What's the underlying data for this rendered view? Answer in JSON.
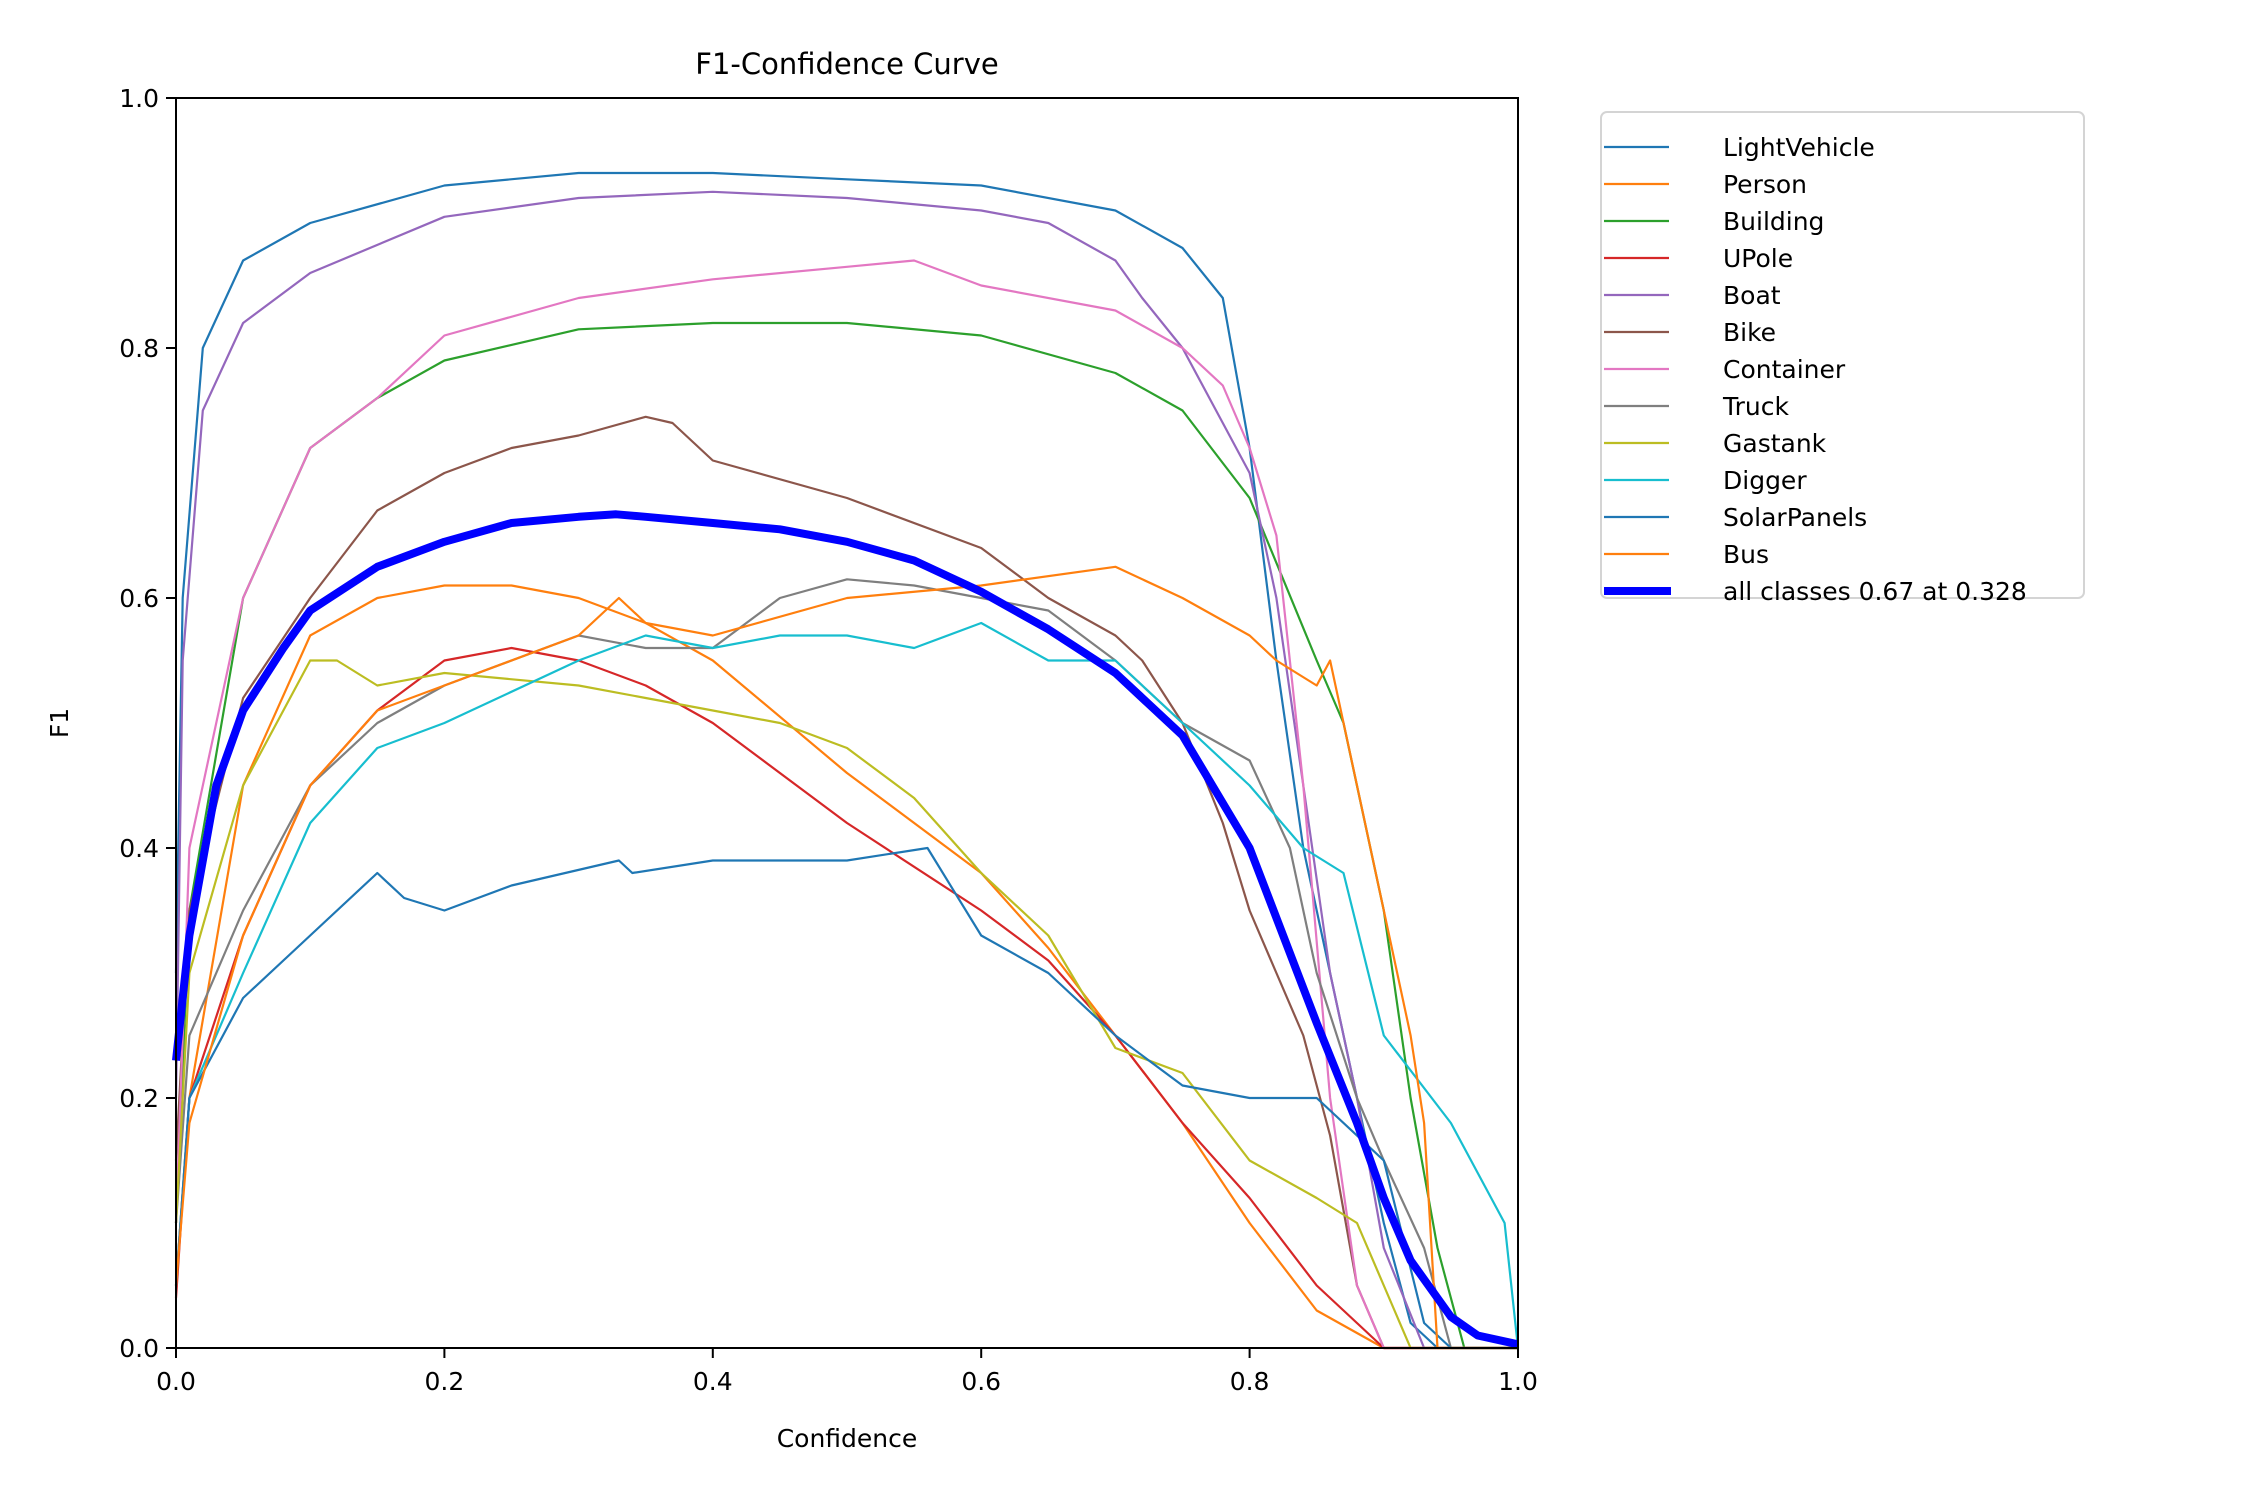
{
  "chart_data": {
    "type": "line",
    "title": "F1-Confidence Curve",
    "xlabel": "Confidence",
    "ylabel": "F1",
    "xlim": [
      0,
      1
    ],
    "ylim": [
      0,
      1
    ],
    "xticks": [
      "0.0",
      "0.2",
      "0.4",
      "0.6",
      "0.8",
      "1.0"
    ],
    "yticks": [
      "0.0",
      "0.2",
      "0.4",
      "0.6",
      "0.8",
      "1.0"
    ],
    "grid": false,
    "legend_position": "outside-top-right",
    "series": [
      {
        "name": "LightVehicle",
        "color": "#1f77b4",
        "x": [
          0,
          0.005,
          0.02,
          0.05,
          0.1,
          0.2,
          0.3,
          0.4,
          0.5,
          0.6,
          0.7,
          0.75,
          0.78,
          0.8,
          0.82,
          0.84,
          0.86,
          0.88,
          0.9,
          0.92,
          0.94,
          1.0
        ],
        "y": [
          0.3,
          0.6,
          0.8,
          0.87,
          0.9,
          0.93,
          0.94,
          0.94,
          0.935,
          0.93,
          0.91,
          0.88,
          0.84,
          0.72,
          0.55,
          0.4,
          0.3,
          0.2,
          0.1,
          0.02,
          0,
          0
        ]
      },
      {
        "name": "Person",
        "color": "#ff7f0e",
        "x": [
          0,
          0.01,
          0.05,
          0.1,
          0.15,
          0.2,
          0.25,
          0.3,
          0.35,
          0.4,
          0.5,
          0.6,
          0.65,
          0.7,
          0.75,
          0.8,
          0.85,
          0.9,
          0.95,
          1.0
        ],
        "y": [
          0.05,
          0.2,
          0.45,
          0.57,
          0.6,
          0.61,
          0.61,
          0.6,
          0.58,
          0.55,
          0.46,
          0.38,
          0.32,
          0.25,
          0.18,
          0.1,
          0.03,
          0,
          0,
          0
        ]
      },
      {
        "name": "Building",
        "color": "#2ca02c",
        "x": [
          0,
          0.01,
          0.05,
          0.1,
          0.15,
          0.2,
          0.3,
          0.4,
          0.5,
          0.6,
          0.7,
          0.75,
          0.8,
          0.85,
          0.87,
          0.9,
          0.92,
          0.94,
          0.96,
          1.0
        ],
        "y": [
          0.1,
          0.35,
          0.6,
          0.72,
          0.76,
          0.79,
          0.815,
          0.82,
          0.82,
          0.81,
          0.78,
          0.75,
          0.68,
          0.55,
          0.5,
          0.35,
          0.2,
          0.08,
          0,
          0
        ]
      },
      {
        "name": "UPole",
        "color": "#d62728",
        "x": [
          0,
          0.01,
          0.05,
          0.1,
          0.15,
          0.2,
          0.25,
          0.3,
          0.35,
          0.4,
          0.5,
          0.6,
          0.65,
          0.7,
          0.75,
          0.8,
          0.85,
          0.9,
          0.95,
          1.0
        ],
        "y": [
          0.04,
          0.2,
          0.33,
          0.45,
          0.51,
          0.55,
          0.56,
          0.55,
          0.53,
          0.5,
          0.42,
          0.35,
          0.31,
          0.25,
          0.18,
          0.12,
          0.05,
          0,
          0,
          0
        ]
      },
      {
        "name": "Boat",
        "color": "#9467bd",
        "x": [
          0,
          0.005,
          0.02,
          0.05,
          0.1,
          0.2,
          0.3,
          0.4,
          0.5,
          0.6,
          0.65,
          0.7,
          0.72,
          0.75,
          0.78,
          0.8,
          0.82,
          0.84,
          0.86,
          0.88,
          0.9,
          0.93,
          1.0
        ],
        "y": [
          0.2,
          0.55,
          0.75,
          0.82,
          0.86,
          0.905,
          0.92,
          0.925,
          0.92,
          0.91,
          0.9,
          0.87,
          0.84,
          0.8,
          0.74,
          0.7,
          0.6,
          0.45,
          0.3,
          0.2,
          0.08,
          0,
          0
        ]
      },
      {
        "name": "Bike",
        "color": "#8c564b",
        "x": [
          0,
          0.01,
          0.05,
          0.1,
          0.15,
          0.2,
          0.25,
          0.3,
          0.35,
          0.37,
          0.4,
          0.5,
          0.6,
          0.65,
          0.7,
          0.72,
          0.75,
          0.78,
          0.8,
          0.82,
          0.84,
          0.86,
          0.88,
          0.9,
          1.0
        ],
        "y": [
          0.15,
          0.35,
          0.52,
          0.6,
          0.67,
          0.7,
          0.72,
          0.73,
          0.745,
          0.74,
          0.71,
          0.68,
          0.64,
          0.6,
          0.57,
          0.55,
          0.5,
          0.42,
          0.35,
          0.3,
          0.25,
          0.17,
          0.05,
          0,
          0
        ]
      },
      {
        "name": "Container",
        "color": "#e377c2",
        "x": [
          0,
          0.01,
          0.05,
          0.1,
          0.15,
          0.2,
          0.3,
          0.4,
          0.5,
          0.55,
          0.6,
          0.7,
          0.75,
          0.78,
          0.8,
          0.82,
          0.84,
          0.86,
          0.88,
          0.9,
          1.0
        ],
        "y": [
          0.1,
          0.4,
          0.6,
          0.72,
          0.76,
          0.81,
          0.84,
          0.855,
          0.865,
          0.87,
          0.85,
          0.83,
          0.8,
          0.77,
          0.72,
          0.65,
          0.45,
          0.2,
          0.05,
          0,
          0
        ]
      },
      {
        "name": "Truck",
        "color": "#7f7f7f",
        "x": [
          0,
          0.01,
          0.05,
          0.1,
          0.15,
          0.2,
          0.25,
          0.3,
          0.35,
          0.4,
          0.45,
          0.5,
          0.55,
          0.6,
          0.65,
          0.7,
          0.75,
          0.8,
          0.83,
          0.85,
          0.88,
          0.9,
          0.93,
          0.95,
          1.0
        ],
        "y": [
          0.1,
          0.25,
          0.35,
          0.45,
          0.5,
          0.53,
          0.55,
          0.57,
          0.56,
          0.56,
          0.6,
          0.615,
          0.61,
          0.6,
          0.59,
          0.55,
          0.5,
          0.47,
          0.4,
          0.3,
          0.2,
          0.15,
          0.08,
          0,
          0
        ]
      },
      {
        "name": "Gastank",
        "color": "#bcbd22",
        "x": [
          0,
          0.01,
          0.05,
          0.1,
          0.12,
          0.15,
          0.2,
          0.3,
          0.35,
          0.4,
          0.45,
          0.5,
          0.55,
          0.6,
          0.65,
          0.7,
          0.75,
          0.8,
          0.85,
          0.88,
          0.9,
          0.92,
          1.0
        ],
        "y": [
          0.1,
          0.3,
          0.45,
          0.55,
          0.55,
          0.53,
          0.54,
          0.53,
          0.52,
          0.51,
          0.5,
          0.48,
          0.44,
          0.38,
          0.33,
          0.24,
          0.22,
          0.15,
          0.12,
          0.1,
          0.05,
          0,
          0
        ]
      },
      {
        "name": "Digger",
        "color": "#17becf",
        "x": [
          0,
          0.01,
          0.05,
          0.1,
          0.15,
          0.2,
          0.3,
          0.35,
          0.4,
          0.45,
          0.5,
          0.55,
          0.6,
          0.65,
          0.7,
          0.75,
          0.8,
          0.84,
          0.87,
          0.9,
          0.95,
          0.99,
          1.0
        ],
        "y": [
          0.05,
          0.2,
          0.3,
          0.42,
          0.48,
          0.5,
          0.55,
          0.57,
          0.56,
          0.57,
          0.57,
          0.56,
          0.58,
          0.55,
          0.55,
          0.5,
          0.45,
          0.4,
          0.38,
          0.25,
          0.18,
          0.1,
          0
        ]
      },
      {
        "name": "SolarPanels",
        "color": "#1f77b4",
        "x": [
          0,
          0.01,
          0.05,
          0.1,
          0.15,
          0.17,
          0.2,
          0.25,
          0.33,
          0.34,
          0.4,
          0.5,
          0.56,
          0.6,
          0.65,
          0.7,
          0.75,
          0.8,
          0.85,
          0.9,
          0.93,
          0.95,
          1.0
        ],
        "y": [
          0.05,
          0.2,
          0.28,
          0.33,
          0.38,
          0.36,
          0.35,
          0.37,
          0.39,
          0.38,
          0.39,
          0.39,
          0.4,
          0.33,
          0.3,
          0.25,
          0.21,
          0.2,
          0.2,
          0.15,
          0.02,
          0,
          0
        ]
      },
      {
        "name": "Bus",
        "color": "#ff7f0e",
        "x": [
          0,
          0.01,
          0.05,
          0.1,
          0.15,
          0.2,
          0.3,
          0.33,
          0.35,
          0.4,
          0.5,
          0.6,
          0.7,
          0.75,
          0.8,
          0.82,
          0.85,
          0.86,
          0.88,
          0.9,
          0.92,
          0.93,
          0.94,
          1.0
        ],
        "y": [
          0.05,
          0.18,
          0.33,
          0.45,
          0.51,
          0.53,
          0.57,
          0.6,
          0.58,
          0.57,
          0.6,
          0.61,
          0.625,
          0.6,
          0.57,
          0.55,
          0.53,
          0.55,
          0.45,
          0.35,
          0.25,
          0.18,
          0,
          0
        ]
      }
    ],
    "aggregate": {
      "name": "all classes 0.67 at 0.328",
      "color": "#0000ff",
      "x": [
        0,
        0.01,
        0.03,
        0.05,
        0.08,
        0.1,
        0.15,
        0.2,
        0.25,
        0.3,
        0.328,
        0.35,
        0.4,
        0.45,
        0.5,
        0.55,
        0.6,
        0.65,
        0.7,
        0.75,
        0.8,
        0.85,
        0.88,
        0.9,
        0.92,
        0.95,
        0.97,
        1.0
      ],
      "y": [
        0.23,
        0.33,
        0.45,
        0.51,
        0.56,
        0.59,
        0.625,
        0.645,
        0.66,
        0.665,
        0.667,
        0.665,
        0.66,
        0.655,
        0.645,
        0.63,
        0.605,
        0.575,
        0.54,
        0.49,
        0.4,
        0.26,
        0.18,
        0.12,
        0.07,
        0.025,
        0.01,
        0.003
      ]
    }
  }
}
